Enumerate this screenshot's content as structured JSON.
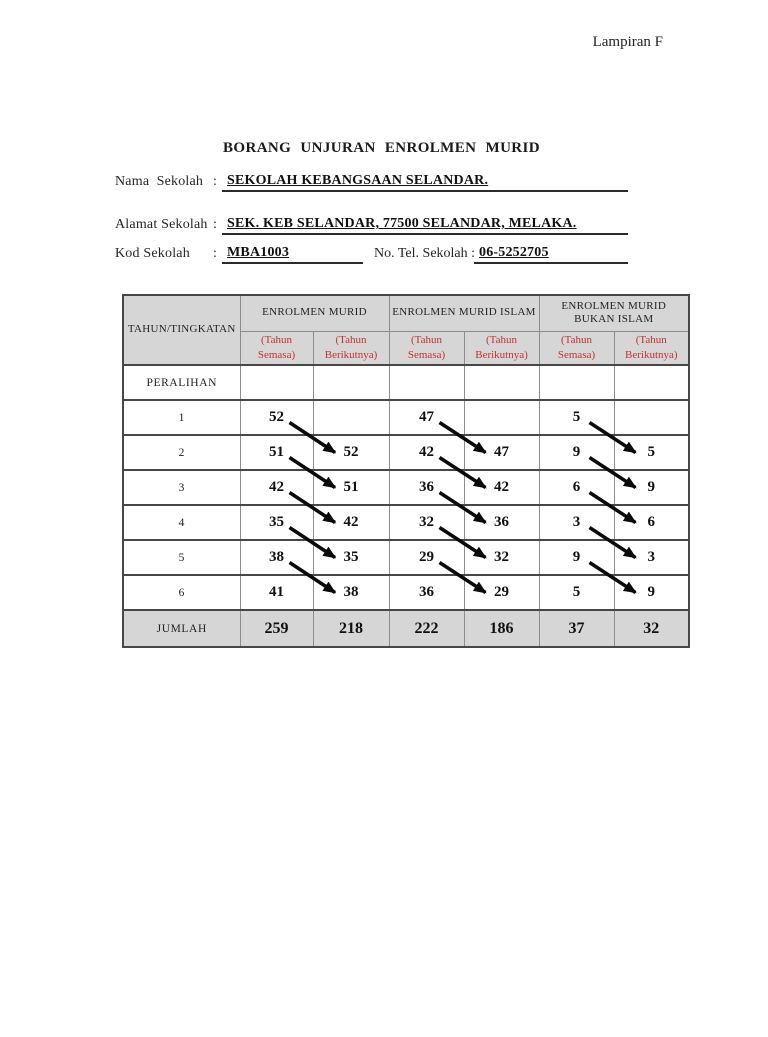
{
  "page": {
    "corner_label": "Lampiran F",
    "title": "BORANG UNJURAN ENROLMEN MURID"
  },
  "form": {
    "colon": ":",
    "nama": {
      "label": "Nama  Sekolah",
      "value": "SEKOLAH KEBANGSAAN SELANDAR."
    },
    "alamat": {
      "label": "Alamat Sekolah",
      "value": "SEK. KEB SELANDAR, 77500 SELANDAR, MELAKA."
    },
    "kod": {
      "label": "Kod Sekolah",
      "value": "MBA1003"
    },
    "tel": {
      "label": "No. Tel. Sekolah :",
      "value": "06-5252705"
    }
  },
  "table": {
    "corner_header": "TAHUN/TINGKATAN",
    "group_headers": [
      "ENROLMEN MURID",
      "ENROLMEN MURID ISLAM",
      "ENROLMEN MURID BUKAN ISLAM"
    ],
    "sub_headers": {
      "semasa": "(Tahun Semasa)",
      "berikutnya": "(Tahun Berikutnya)"
    },
    "rows": [
      {
        "label": "PERALIHAN",
        "values": [
          "",
          "",
          "",
          "",
          "",
          ""
        ]
      },
      {
        "label": "1",
        "values": [
          "52",
          "",
          "47",
          "",
          "5",
          ""
        ]
      },
      {
        "label": "2",
        "values": [
          "51",
          "52",
          "42",
          "47",
          "9",
          "5"
        ]
      },
      {
        "label": "3",
        "values": [
          "42",
          "51",
          "36",
          "42",
          "6",
          "9"
        ]
      },
      {
        "label": "4",
        "values": [
          "35",
          "42",
          "32",
          "36",
          "3",
          "6"
        ]
      },
      {
        "label": "5",
        "values": [
          "38",
          "35",
          "29",
          "32",
          "9",
          "3"
        ]
      },
      {
        "label": "6",
        "values": [
          "41",
          "38",
          "36",
          "29",
          "5",
          "9"
        ]
      },
      {
        "label": "JUMLAH",
        "values": [
          "259",
          "218",
          "222",
          "186",
          "37",
          "32"
        ],
        "total": true
      }
    ],
    "arrows_meaning": "each (Tahun Semasa) value carries forward diagonally to (Tahun Berikutnya) of the next year row"
  },
  "colors": {
    "accent_red": "#c43131",
    "header_bg": "#d6d6d6",
    "border_dark": "#474747",
    "border_light": "#8c8c8c",
    "arrow": "#0a0a0a"
  }
}
